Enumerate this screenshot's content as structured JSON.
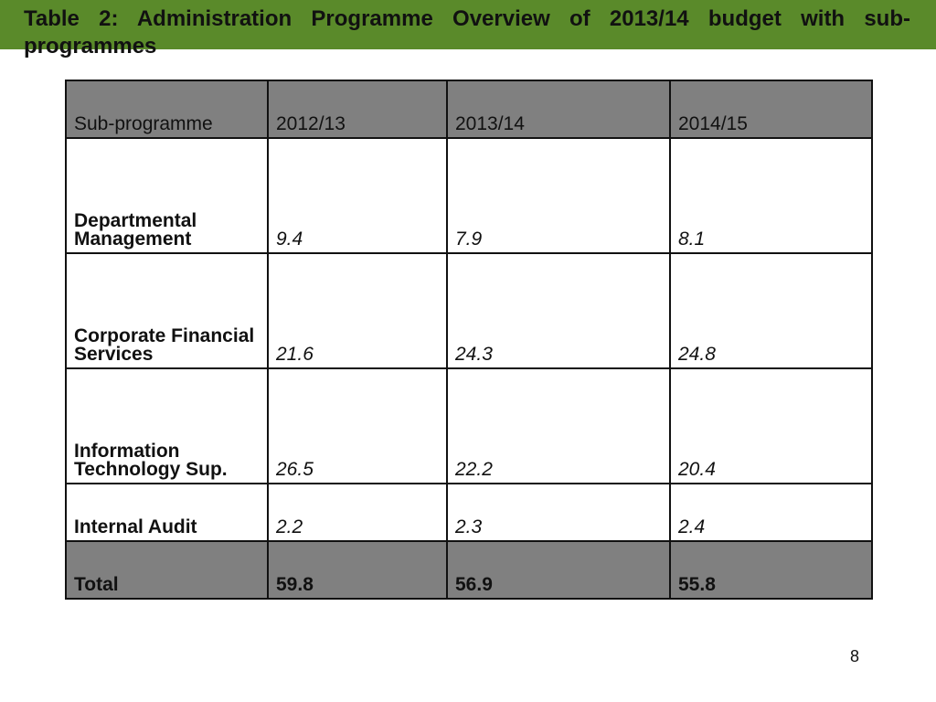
{
  "title": "Table 2: Administration Programme Overview of 2013/14 budget with sub-programmes",
  "colors": {
    "top_bar": "#5a8a2a",
    "header_fill": "#808080"
  },
  "table": {
    "headers": [
      "Sub-programme",
      "2012/13",
      "2013/14",
      "2014/15"
    ],
    "rows": [
      {
        "name": "Departmental Management",
        "values": [
          "9.4",
          "7.9",
          "8.1"
        ]
      },
      {
        "name": "Corporate Financial Services",
        "values": [
          "21.6",
          "24.3",
          "24.8"
        ]
      },
      {
        "name": "Information Technology Sup.",
        "values": [
          "26.5",
          "22.2",
          "20.4"
        ]
      },
      {
        "name": "Internal Audit",
        "values": [
          "2.2",
          "2.3",
          "2.4"
        ]
      }
    ],
    "total": {
      "label": "Total",
      "values": [
        "59.8",
        "56.9",
        "55.8"
      ]
    }
  },
  "page_number": "8"
}
